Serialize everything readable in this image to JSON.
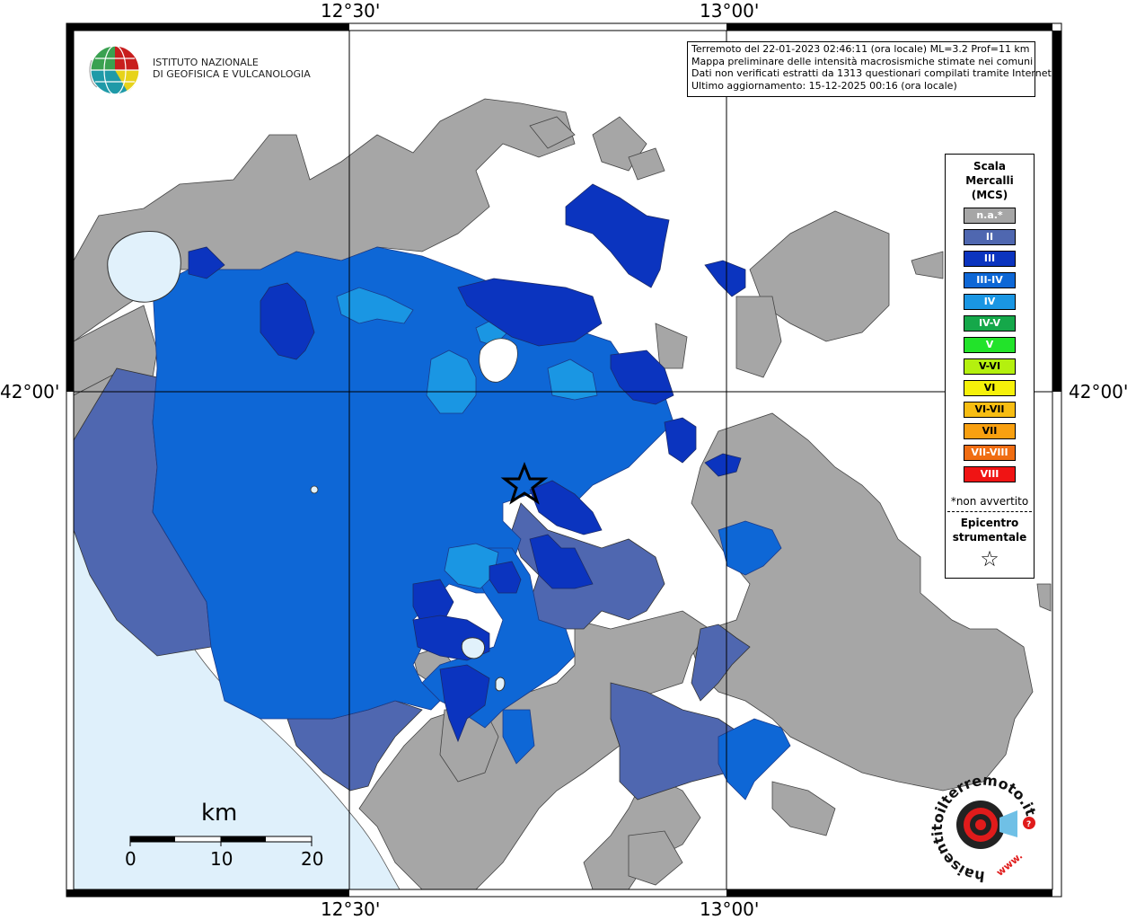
{
  "map": {
    "coords": {
      "top_lon_left": "12°30'",
      "top_lon_right": "13°00'",
      "bottom_lon_left": "12°30'",
      "bottom_lon_right": "13°00'",
      "lat_left": "42°00'",
      "lat_right": "42°00'"
    },
    "info": {
      "line1": "Terremoto del 22-01-2023 02:46:11 (ora locale) ML=3.2 Prof=11 km",
      "line2": "Mappa preliminare delle intensità macrosismiche stimate nei comuni",
      "line3": "Dati non verificati estratti da 1313 questionari compilati tramite Internet.",
      "line4": "Ultimo aggiornamento: 15-12-2025 00:16 (ora locale)"
    },
    "colors": {
      "na": "#a6a6a6",
      "II": "#4f67b0",
      "III": "#0b34bf",
      "III_IV": "#0e67d6",
      "IV": "#1a96e3",
      "sea": "#dff0fb",
      "lake": "#e1f1fb"
    }
  },
  "legend": {
    "title_lines": [
      "Scala",
      "Mercalli",
      "(MCS)"
    ],
    "items": [
      {
        "label": "n.a.*",
        "color": "#a6a6a6"
      },
      {
        "label": "II",
        "color": "#4f67b0"
      },
      {
        "label": "III",
        "color": "#0b34bf"
      },
      {
        "label": "III-IV",
        "color": "#0e67d6"
      },
      {
        "label": "IV",
        "color": "#1a96e3"
      },
      {
        "label": "IV-V",
        "color": "#15a84a"
      },
      {
        "label": "V",
        "color": "#22e32a"
      },
      {
        "label": "V-VI",
        "color": "#b4f00f"
      },
      {
        "label": "VI",
        "color": "#f6f10a"
      },
      {
        "label": "VI-VII",
        "color": "#f7bd12"
      },
      {
        "label": "VII",
        "color": "#f9a010"
      },
      {
        "label": "VII-VIII",
        "color": "#f06d12"
      },
      {
        "label": "VIII",
        "color": "#f01414"
      }
    ],
    "note": "*non avvertito",
    "epicenter_lines": [
      "Epicentro",
      "strumentale"
    ]
  },
  "logo": {
    "line1": "ISTITUTO NAZIONALE",
    "line2": "DI GEOFISICA E VULCANOLOGIA"
  },
  "scalebar": {
    "unit": "km",
    "labels": [
      "0",
      "10",
      "20"
    ]
  },
  "brand": {
    "text": "haisentitoilterremoto.it",
    "www": "www."
  }
}
